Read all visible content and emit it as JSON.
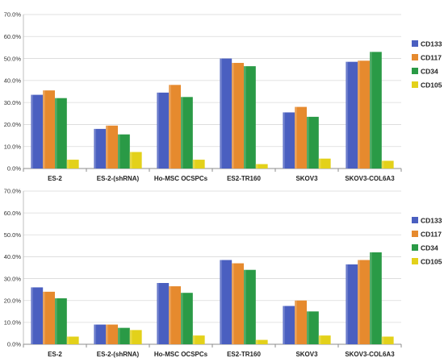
{
  "chart_data": [
    {
      "type": "bar",
      "categories": [
        "ES-2",
        "ES-2-(shRNA)",
        "Ho-MSC OCSPCs",
        "ES2-TR160",
        "SKOV3",
        "SKOV3-COL6A3"
      ],
      "y_ticks": [
        "0.0%",
        "10.0%",
        "20.0%",
        "30.0%",
        "40.0%",
        "50.0%",
        "60.0%",
        "70.0%"
      ],
      "ylim": [
        0,
        70
      ],
      "grid": true,
      "legend_position": "right",
      "series": [
        {
          "name": "CD133",
          "color": "#4a5fc0",
          "values": [
            33.5,
            18,
            34.5,
            50,
            25.5,
            48.5
          ]
        },
        {
          "name": "CD117",
          "color": "#e68a2e",
          "values": [
            35.5,
            19.5,
            38,
            48,
            28,
            49
          ]
        },
        {
          "name": "CD34",
          "color": "#2a9a46",
          "values": [
            32,
            15.5,
            32.5,
            46.5,
            23.5,
            53
          ]
        },
        {
          "name": "CD105",
          "color": "#e3d11a",
          "values": [
            4,
            7.5,
            4,
            2,
            4.5,
            3.5
          ]
        }
      ]
    },
    {
      "type": "bar",
      "categories": [
        "ES-2",
        "ES-2-(shRNA)",
        "Ho-MSC OCSPCs",
        "ES2-TR160",
        "SKOV3",
        "SKOV3-COL6A3"
      ],
      "y_ticks": [
        "0.0%",
        "10.0%",
        "20.0%",
        "30.0%",
        "40.0%",
        "50.0%",
        "60.0%",
        "70.0%"
      ],
      "ylim": [
        0,
        70
      ],
      "grid": true,
      "legend_position": "right",
      "series": [
        {
          "name": "CD133",
          "color": "#4a5fc0",
          "values": [
            26,
            9,
            28,
            38.5,
            17.5,
            36.5
          ]
        },
        {
          "name": "CD117",
          "color": "#e68a2e",
          "values": [
            24,
            9,
            26.5,
            37,
            20,
            38.5
          ]
        },
        {
          "name": "CD34",
          "color": "#2a9a46",
          "values": [
            21,
            7.5,
            23.5,
            34,
            15,
            42
          ]
        },
        {
          "name": "CD105",
          "color": "#e3d11a",
          "values": [
            3.5,
            6.5,
            4,
            2,
            4,
            3.5
          ]
        }
      ]
    }
  ]
}
